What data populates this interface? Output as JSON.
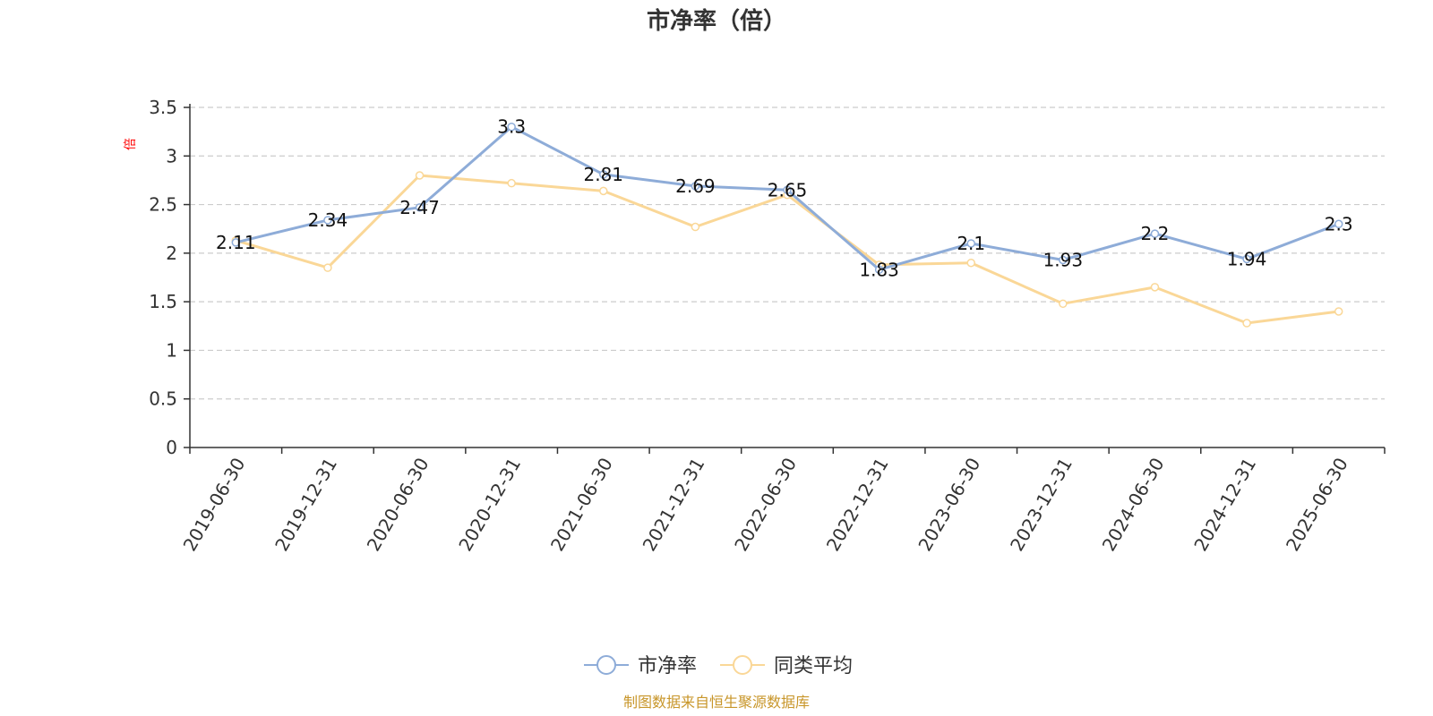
{
  "chart_data": {
    "type": "line",
    "title": "市净率（倍）",
    "ylabel": "倍",
    "ylim": [
      0,
      3.5
    ],
    "yticks": [
      "0",
      "0.5",
      "1",
      "1.5",
      "2",
      "2.5",
      "3",
      "3.5"
    ],
    "grid": true,
    "legend_position": "bottom",
    "categories": [
      "2019-06-30",
      "2019-12-31",
      "2020-06-30",
      "2020-12-31",
      "2021-06-30",
      "2021-12-31",
      "2022-06-30",
      "2022-12-31",
      "2023-06-30",
      "2023-12-31",
      "2024-06-30",
      "2024-12-31",
      "2025-06-30"
    ],
    "series": [
      {
        "name": "市净率",
        "color": "#8eacd8",
        "values": [
          2.11,
          2.34,
          2.47,
          3.3,
          2.81,
          2.69,
          2.65,
          1.83,
          2.1,
          1.93,
          2.2,
          1.94,
          2.3
        ],
        "labels": [
          "2.11",
          "2.34",
          "2.47",
          "3.3",
          "2.81",
          "2.69",
          "2.65",
          "1.83",
          "2.1",
          "1.93",
          "2.2",
          "1.94",
          "2.3"
        ]
      },
      {
        "name": "同类平均",
        "color": "#fad797",
        "values": [
          2.13,
          1.85,
          2.8,
          2.72,
          2.64,
          2.27,
          2.6,
          1.88,
          1.9,
          1.48,
          1.65,
          1.28,
          1.4
        ]
      }
    ],
    "source": "制图数据来自恒生聚源数据库"
  }
}
